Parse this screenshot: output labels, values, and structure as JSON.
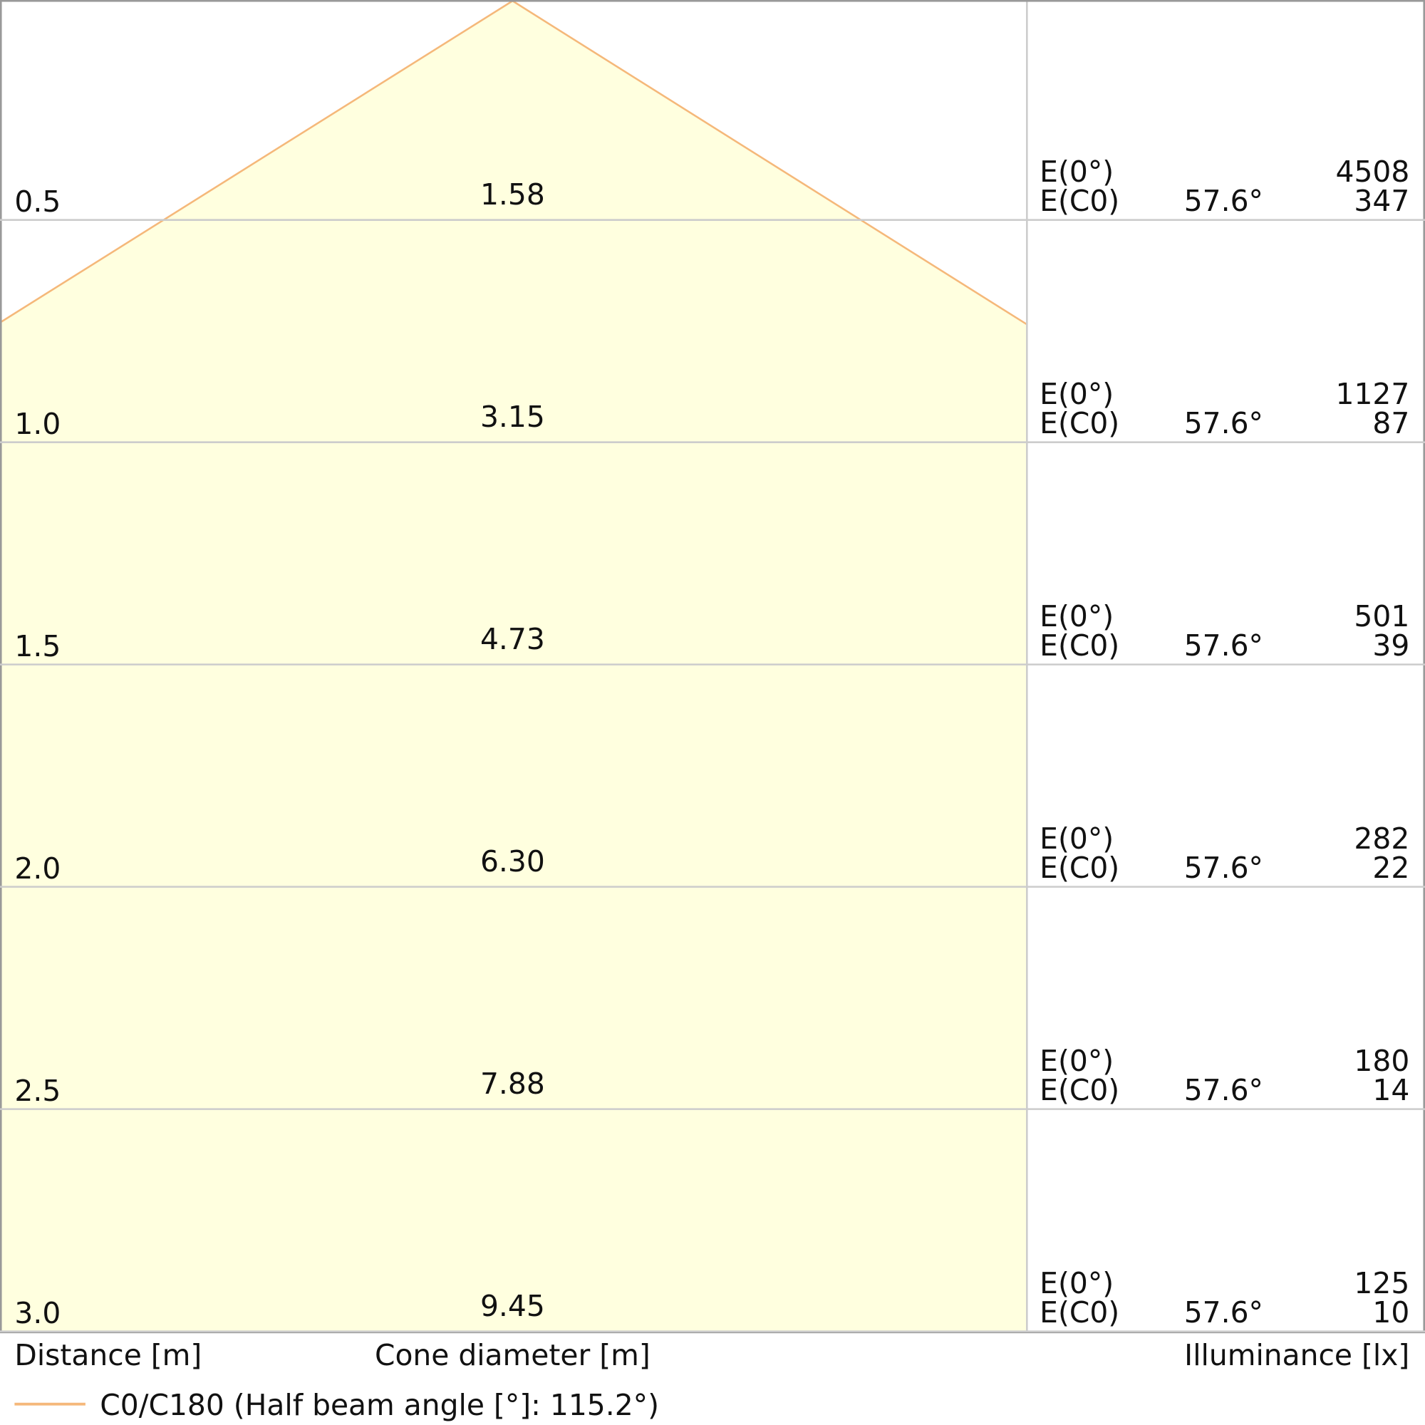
{
  "labels": {
    "e0": "E(0°)",
    "ec0": "E(C0)",
    "distance_axis": "Distance [m]",
    "diameter_axis": "Cone diameter [m]",
    "illuminance_axis": "Illuminance [lx]",
    "legend": "C0/C180 (Half beam angle [°]: 115.2°)"
  },
  "rows": [
    {
      "distance": "0.5",
      "diameter": "1.58",
      "angle": "57.6°",
      "e0": "4508",
      "ec0": "347"
    },
    {
      "distance": "1.0",
      "diameter": "3.15",
      "angle": "57.6°",
      "e0": "1127",
      "ec0": "87"
    },
    {
      "distance": "1.5",
      "diameter": "4.73",
      "angle": "57.6°",
      "e0": "501",
      "ec0": "39"
    },
    {
      "distance": "2.0",
      "diameter": "6.30",
      "angle": "57.6°",
      "e0": "282",
      "ec0": "22"
    },
    {
      "distance": "2.5",
      "diameter": "7.88",
      "angle": "57.6°",
      "e0": "180",
      "ec0": "14"
    },
    {
      "distance": "3.0",
      "diameter": "9.45",
      "angle": "57.6°",
      "e0": "125",
      "ec0": "10"
    }
  ]
}
